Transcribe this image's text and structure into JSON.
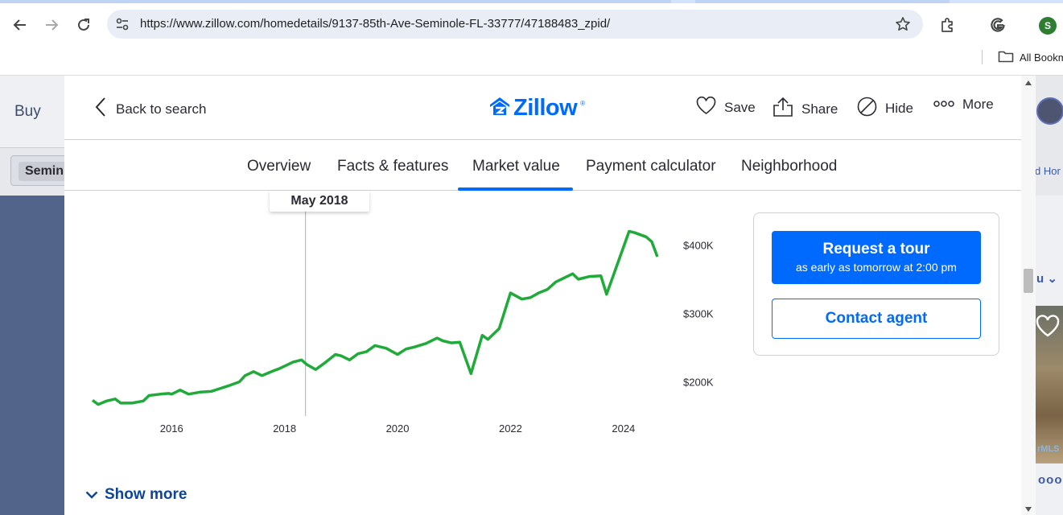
{
  "browser": {
    "url": "https://www.zillow.com/homedetails/9137-85th-Ave-Seminole-FL-33777/47188483_zpid/",
    "profile_initial": "S",
    "bookmarks_label": "All Bookm",
    "icons": [
      "back-arrow-icon",
      "forward-arrow-icon",
      "reload-icon",
      "site-info-icon",
      "bookmark-star-icon",
      "extensions-icon",
      "google-icon",
      "folder-icon"
    ]
  },
  "background_page": {
    "buy_label": "Buy",
    "search_pill": "Semin",
    "add_home_label": "d Hor",
    "sort_label": "u",
    "mls_label": "rMLS",
    "dots_label": "ooo"
  },
  "modal": {
    "back_label": "Back to search",
    "logo_text": "Zillow",
    "logo_reg": "®",
    "actions": {
      "save": "Save",
      "share": "Share",
      "hide": "Hide",
      "more": "More"
    },
    "tabs": [
      "Overview",
      "Facts & features",
      "Market value",
      "Payment calculator",
      "Neighborhood"
    ],
    "active_tab": "Market value",
    "tooltip": "May 2018",
    "cta": {
      "tour_title": "Request a tour",
      "tour_subtitle": "as early as tomorrow at 2:00 pm",
      "contact_label": "Contact agent"
    },
    "show_more_label": "Show more",
    "colors": {
      "brand": "#006aff",
      "line": "#1faa39",
      "link": "#0d4599"
    }
  },
  "chart_data": {
    "type": "line",
    "title": "",
    "xlabel": "",
    "ylabel": "",
    "x_ticks": [
      "2016",
      "2018",
      "2020",
      "2022",
      "2024"
    ],
    "y_ticks": [
      "$200K",
      "$300K",
      "$400K"
    ],
    "ylim": [
      150000,
      450000
    ],
    "xlim": [
      2014.6,
      2024.9
    ],
    "hover_x": 2018.37,
    "series": [
      {
        "x": [
          2014.6,
          2014.7,
          2014.85,
          2015.0,
          2015.1,
          2015.3,
          2015.5,
          2015.6,
          2015.8,
          2015.95,
          2016.0,
          2016.15,
          2016.3,
          2016.5,
          2016.7,
          2016.85,
          2017.0,
          2017.2,
          2017.3,
          2017.45,
          2017.6,
          2017.8,
          2017.9,
          2018.05,
          2018.15,
          2018.3,
          2018.4,
          2018.55,
          2018.7,
          2018.9,
          2019.0,
          2019.15,
          2019.3,
          2019.45,
          2019.6,
          2019.8,
          2020.0,
          2020.15,
          2020.3,
          2020.5,
          2020.7,
          2020.8,
          2020.95,
          2021.1,
          2021.3,
          2021.5,
          2021.6,
          2021.8,
          2022.0,
          2022.2,
          2022.35,
          2022.5,
          2022.65,
          2022.8,
          2023.1,
          2023.2,
          2023.4,
          2023.6,
          2023.7,
          2023.9,
          2024.1,
          2024.2,
          2024.3,
          2024.4,
          2024.5,
          2024.6
        ],
        "y": [
          173000,
          167000,
          172000,
          175000,
          169000,
          169000,
          172000,
          180000,
          182000,
          183000,
          182000,
          188000,
          182000,
          185000,
          186000,
          190000,
          194000,
          200000,
          209000,
          215000,
          209000,
          216000,
          219000,
          225000,
          229000,
          232000,
          225000,
          218000,
          227000,
          240000,
          238000,
          232000,
          241000,
          244000,
          253000,
          249000,
          240000,
          248000,
          251000,
          256000,
          264000,
          260000,
          257000,
          258000,
          212000,
          268000,
          262000,
          278000,
          330000,
          321000,
          323000,
          330000,
          335000,
          346000,
          358000,
          350000,
          354000,
          355000,
          328000,
          374000,
          420000,
          418000,
          415000,
          412000,
          405000,
          383000
        ]
      }
    ]
  }
}
